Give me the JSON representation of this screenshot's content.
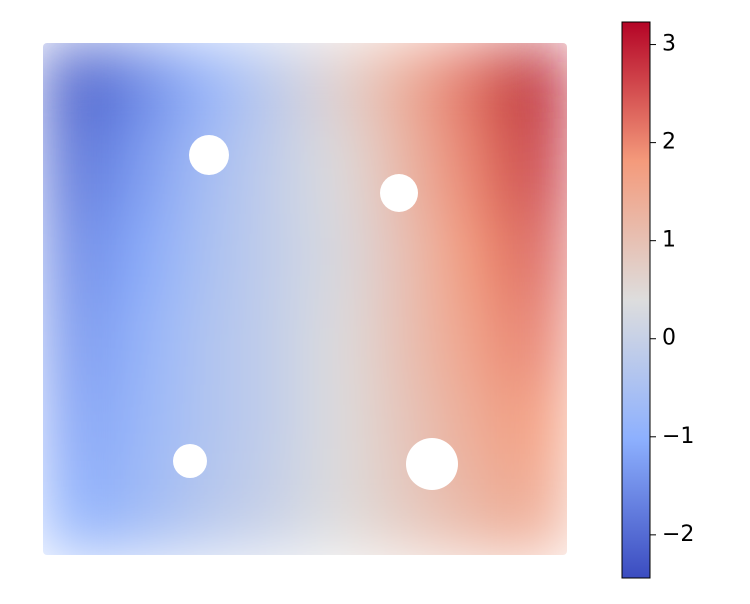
{
  "chart_data": {
    "type": "field",
    "values": [
      [
        -2.2,
        -1.6,
        -0.9,
        -0.2,
        0.6,
        1.4,
        2.2,
        3.1
      ],
      [
        -1.9,
        -1.3,
        -0.6,
        -0.1,
        0.4,
        1.2,
        2.0,
        2.8
      ],
      [
        -1.6,
        -1.1,
        -0.5,
        -0.1,
        0.3,
        1.0,
        1.8,
        2.4
      ],
      [
        -1.4,
        -0.9,
        -0.4,
        -0.1,
        0.4,
        1.0,
        1.6,
        2.1
      ],
      [
        -1.2,
        -0.8,
        -0.4,
        -0.1,
        0.4,
        0.9,
        1.4,
        1.8
      ],
      [
        -1.0,
        -0.7,
        -0.3,
        0.0,
        0.4,
        0.8,
        1.2,
        1.5
      ]
    ],
    "colormap": [
      "#3b4cc0",
      "#8db0fe",
      "#dddddd",
      "#f49a7b",
      "#b40426"
    ],
    "clim": [
      -2.44,
      3.23
    ],
    "cticks": [
      {
        "value": -2,
        "label": "−2"
      },
      {
        "value": -1,
        "label": "−1"
      },
      0,
      1,
      2,
      3
    ]
  }
}
